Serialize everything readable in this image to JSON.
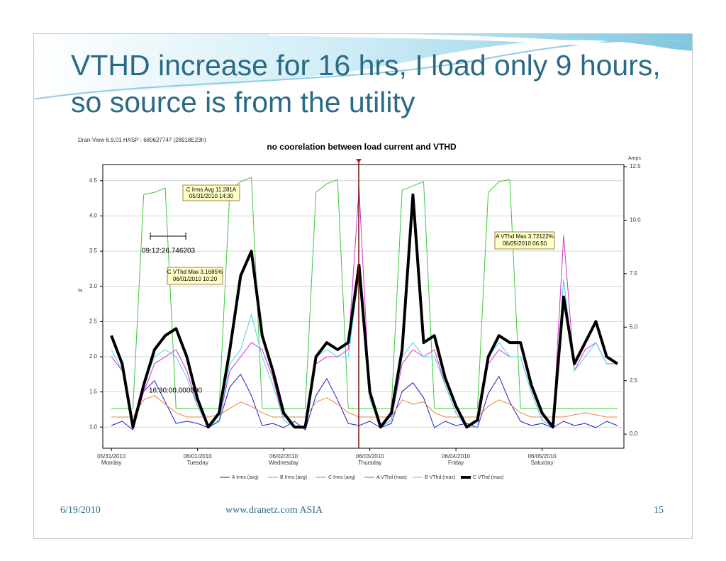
{
  "slide": {
    "title": "VTHD increase for 16 hrs, I load only 9 hours, so source is from the utility",
    "footer_date": "6/19/2010",
    "footer_center": "www.dranetz.com  ASIA",
    "page_number": "15"
  },
  "chart_data": {
    "type": "line",
    "header": "Dran-View 6.9.01 HASP : 680627747 (28918E23h)",
    "title": "no coorelation between  load current and VTHD",
    "ylabel": "%",
    "y2label": "Amps",
    "x": [
      0,
      0.125,
      0.25,
      0.375,
      0.5,
      0.625,
      0.75,
      0.875,
      1,
      1.125,
      1.25,
      1.375,
      1.5,
      1.625,
      1.75,
      1.875,
      2,
      2.125,
      2.25,
      2.375,
      2.5,
      2.625,
      2.75,
      2.875,
      3,
      3.125,
      3.25,
      3.375,
      3.5,
      3.625,
      3.75,
      3.875,
      4,
      4.125,
      4.25,
      4.375,
      4.5,
      4.625,
      4.75,
      4.875,
      5,
      5.125,
      5.25,
      5.375,
      5.5,
      5.625,
      5.75,
      5.875
    ],
    "xlim": [
      -0.1,
      5.95
    ],
    "xticks": [
      {
        "value": 0,
        "label": "05/31/2010"
      },
      {
        "value": 1,
        "label": "06/01/2010"
      },
      {
        "value": 2,
        "label": "06/02/2010"
      },
      {
        "value": 3,
        "label": "06/03/2010"
      },
      {
        "value": 4,
        "label": "06/04/2010"
      },
      {
        "value": 5,
        "label": "06/05/2010"
      }
    ],
    "x_day_labels": [
      "Monday",
      "Tuesday",
      "Wednesday",
      "Thursday",
      "Friday",
      "Saturday"
    ],
    "ylim": [
      0.7,
      4.73
    ],
    "yticks": [
      {
        "value": 1,
        "label": "1.0"
      },
      1.5,
      {
        "value": 2,
        "label": "2.0"
      },
      2.5,
      {
        "value": 3,
        "label": "3.0"
      },
      3.5,
      {
        "value": 4,
        "label": "4.0"
      },
      4.5
    ],
    "y2lim": [
      -0.66,
      12.6
    ],
    "y2ticks": [
      {
        "value": 0,
        "label": "0.0"
      },
      2.5,
      {
        "value": 5,
        "label": "5.0"
      },
      7.5,
      {
        "value": 10,
        "label": "10.0"
      },
      12.5
    ],
    "grid": true,
    "series": [
      {
        "name": "A Irms (avg)",
        "color": "#1c1cc8",
        "axis": "y2",
        "width": 1,
        "values": [
          0.4,
          0.6,
          0.2,
          2.0,
          2.5,
          1.5,
          0.5,
          0.6,
          0.5,
          0.3,
          0.6,
          2.2,
          2.8,
          1.8,
          0.4,
          0.5,
          0.3,
          0.6,
          0.2,
          1.8,
          2.6,
          1.6,
          0.5,
          0.4,
          0.6,
          0.3,
          0.5,
          2.0,
          2.4,
          1.7,
          0.3,
          0.6,
          0.4,
          0.5,
          0.3,
          1.9,
          2.7,
          1.5,
          0.6,
          0.4,
          0.5,
          0.3,
          0.6,
          0.4,
          0.5,
          0.3,
          0.6,
          0.4
        ]
      },
      {
        "name": "B Irms (avg)",
        "color": "#e8843c",
        "axis": "y2",
        "width": 1,
        "values": [
          0.8,
          0.8,
          0.8,
          1.6,
          1.8,
          1.4,
          1.0,
          0.8,
          0.8,
          0.8,
          0.9,
          1.2,
          1.5,
          1.3,
          1.0,
          0.8,
          0.8,
          0.8,
          0.8,
          1.5,
          1.7,
          1.4,
          1.0,
          0.8,
          0.8,
          0.8,
          0.8,
          1.6,
          1.4,
          1.5,
          1.0,
          0.8,
          0.8,
          0.8,
          0.8,
          1.3,
          1.6,
          1.4,
          1.0,
          0.8,
          0.8,
          0.8,
          0.8,
          0.9,
          1.0,
          0.9,
          0.8,
          0.8
        ]
      },
      {
        "name": "C Irms (avg)",
        "color": "#3cc83c",
        "axis": "y2",
        "width": 1,
        "values": [
          1.2,
          1.2,
          1.2,
          11.2,
          11.3,
          11.5,
          1.2,
          1.2,
          1.2,
          1.2,
          1.2,
          11.4,
          11.8,
          12.0,
          1.2,
          1.2,
          1.2,
          1.2,
          1.2,
          11.3,
          11.7,
          11.9,
          1.2,
          1.2,
          1.2,
          1.2,
          1.2,
          11.4,
          11.6,
          11.8,
          1.2,
          1.2,
          1.2,
          1.2,
          1.2,
          11.3,
          11.8,
          11.9,
          1.2,
          1.2,
          1.2,
          1.2,
          1.2,
          1.2,
          1.2,
          1.2,
          1.2,
          1.2
        ]
      },
      {
        "name": "A VThd (max)",
        "color": "#d030d0",
        "width": 1,
        "values": [
          2.0,
          1.8,
          1.0,
          1.5,
          1.9,
          2.0,
          2.1,
          1.8,
          1.3,
          1.0,
          1.1,
          1.8,
          2.0,
          2.2,
          2.1,
          1.7,
          1.1,
          1.0,
          1.0,
          1.9,
          2.0,
          2.0,
          2.1,
          4.4,
          1.4,
          1.0,
          1.1,
          1.9,
          2.1,
          2.0,
          2.1,
          1.6,
          1.2,
          1.0,
          1.0,
          1.9,
          2.1,
          2.0,
          2.0,
          1.5,
          1.1,
          1.0,
          3.72,
          1.8,
          2.1,
          2.2,
          1.9,
          1.9
        ]
      },
      {
        "name": "B VThd (max)",
        "color": "#40d8e8",
        "width": 1,
        "values": [
          2.1,
          1.8,
          1.0,
          1.6,
          2.0,
          2.1,
          2.0,
          1.7,
          1.3,
          1.0,
          1.1,
          1.9,
          2.1,
          2.6,
          2.0,
          1.6,
          1.1,
          1.0,
          1.0,
          2.0,
          2.1,
          2.0,
          2.0,
          3.2,
          1.4,
          1.0,
          1.1,
          2.0,
          2.2,
          2.0,
          2.0,
          1.6,
          1.2,
          1.0,
          1.0,
          2.0,
          2.2,
          2.0,
          2.0,
          1.5,
          1.1,
          1.0,
          3.1,
          1.8,
          2.0,
          2.2,
          1.9,
          1.9
        ]
      },
      {
        "name": "C VThd (max)",
        "color": "#000000",
        "width": 4,
        "values": [
          2.3,
          1.9,
          1.0,
          1.6,
          2.1,
          2.3,
          2.4,
          2.0,
          1.4,
          1.0,
          1.2,
          2.1,
          3.15,
          3.5,
          2.3,
          1.8,
          1.2,
          1.0,
          1.0,
          2.0,
          2.2,
          2.1,
          2.2,
          3.3,
          1.5,
          1.0,
          1.2,
          2.1,
          4.3,
          2.2,
          2.3,
          1.7,
          1.3,
          1.0,
          1.1,
          2.0,
          2.3,
          2.2,
          2.2,
          1.6,
          1.2,
          1.0,
          2.85,
          1.9,
          2.2,
          2.5,
          2.0,
          1.9
        ]
      }
    ],
    "annotations": [
      "C Irms Avg 11.281A",
      "05/31/2010 14:30",
      "C VThd Max 3.1685%",
      "06/01/2010 10:20",
      "A VThd Max 3.72122%",
      "06/05/2010 06:50",
      "09:12:26.746203",
      "16:30:00.000000"
    ]
  }
}
